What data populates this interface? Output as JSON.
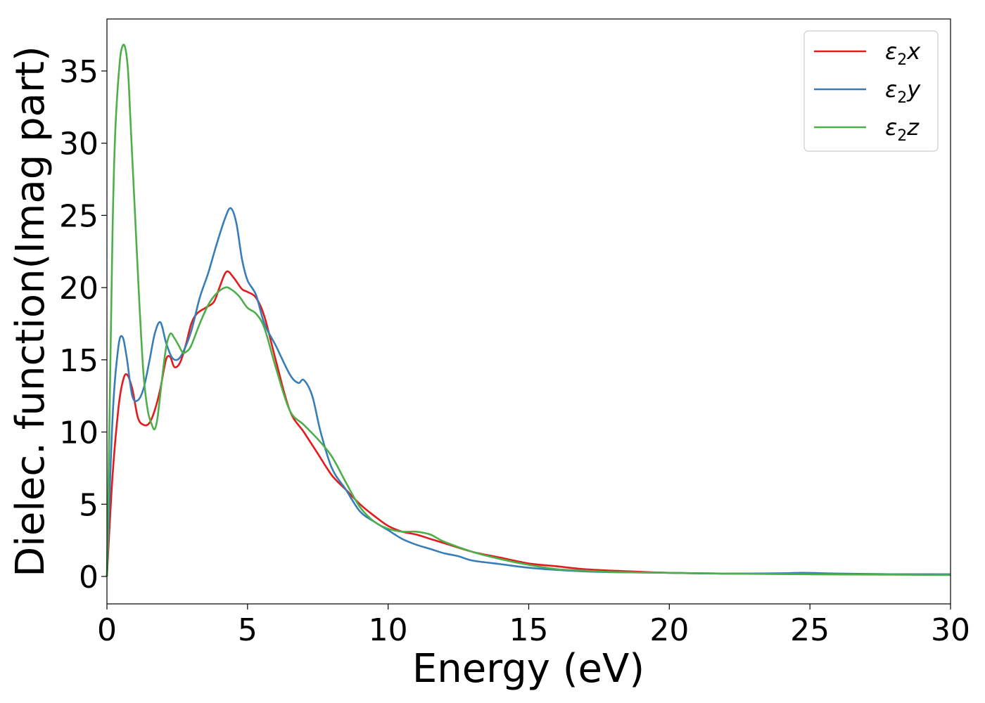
{
  "chart_data": {
    "type": "line",
    "xlabel": "Energy (eV)",
    "ylabel": "Dielec. function(Imag part)",
    "xlim": [
      0,
      30
    ],
    "ylim": [
      -1.9,
      38.6
    ],
    "xticks": [
      0,
      5,
      10,
      15,
      20,
      25,
      30
    ],
    "yticks": [
      0,
      5,
      10,
      15,
      20,
      25,
      30,
      35
    ],
    "legend_position": "top-right",
    "grid": false,
    "series": [
      {
        "name": "ε2x",
        "legend_base": "ε",
        "legend_sub": "2",
        "legend_var": "x",
        "color": "#e41a1c",
        "x": [
          0,
          0.2,
          0.4,
          0.55,
          0.7,
          0.9,
          1.1,
          1.3,
          1.5,
          1.7,
          1.9,
          2.1,
          2.25,
          2.4,
          2.6,
          2.8,
          3.0,
          3.2,
          3.5,
          3.8,
          4.0,
          4.25,
          4.5,
          4.8,
          5.0,
          5.3,
          5.6,
          6.0,
          6.5,
          7.0,
          7.5,
          8.0,
          8.5,
          9.0,
          9.5,
          10.0,
          10.5,
          11.0,
          11.5,
          12.0,
          13.0,
          14.0,
          15.0,
          16.0,
          17.0,
          18.0,
          20.0,
          22.0,
          24.0,
          26.0,
          28.0,
          30.0
        ],
        "y": [
          0,
          7,
          11.5,
          13.4,
          14.0,
          13.0,
          11.0,
          10.5,
          10.6,
          11.5,
          13.0,
          15.0,
          15.2,
          14.5,
          14.8,
          16.0,
          17.5,
          18.2,
          18.6,
          19.0,
          20.0,
          21.1,
          20.7,
          19.9,
          19.7,
          19.3,
          18.0,
          15.0,
          11.5,
          10.0,
          8.5,
          7.0,
          6.0,
          5.0,
          4.2,
          3.5,
          3.1,
          2.9,
          2.6,
          2.3,
          1.7,
          1.3,
          0.9,
          0.7,
          0.5,
          0.4,
          0.25,
          0.2,
          0.18,
          0.16,
          0.15,
          0.15
        ]
      },
      {
        "name": "ε2y",
        "legend_base": "ε",
        "legend_sub": "2",
        "legend_var": "y",
        "color": "#377eb8",
        "x": [
          0,
          0.2,
          0.4,
          0.55,
          0.7,
          0.9,
          1.1,
          1.3,
          1.5,
          1.7,
          1.9,
          2.1,
          2.3,
          2.5,
          2.7,
          3.0,
          3.3,
          3.6,
          3.9,
          4.2,
          4.4,
          4.6,
          4.8,
          5.0,
          5.3,
          5.6,
          6.0,
          6.5,
          6.8,
          7.0,
          7.3,
          7.6,
          8.0,
          8.5,
          9.0,
          9.5,
          10.0,
          10.5,
          11.0,
          11.5,
          12.0,
          12.5,
          13.0,
          14.0,
          15.0,
          16.0,
          17.0,
          18.0,
          20.0,
          22.0,
          24.0,
          24.7,
          26.0,
          28.0,
          30.0
        ],
        "y": [
          0,
          11,
          15.8,
          16.6,
          15.2,
          12.5,
          12.2,
          13.0,
          14.8,
          16.8,
          17.6,
          16.2,
          15.2,
          15.0,
          15.5,
          17.0,
          19.3,
          21.0,
          23.0,
          24.8,
          25.5,
          24.5,
          22.0,
          20.5,
          19.5,
          17.5,
          16.0,
          14.0,
          13.4,
          13.6,
          12.5,
          10.0,
          7.5,
          6.0,
          4.5,
          3.8,
          3.2,
          2.6,
          2.2,
          1.9,
          1.6,
          1.4,
          1.1,
          0.85,
          0.6,
          0.45,
          0.35,
          0.3,
          0.25,
          0.2,
          0.22,
          0.25,
          0.2,
          0.15,
          0.13
        ]
      },
      {
        "name": "ε2z",
        "legend_base": "ε",
        "legend_sub": "2",
        "legend_var": "z",
        "color": "#4daf4a",
        "x": [
          0,
          0.1,
          0.2,
          0.3,
          0.45,
          0.55,
          0.65,
          0.75,
          0.85,
          1.0,
          1.15,
          1.3,
          1.45,
          1.6,
          1.7,
          1.8,
          1.95,
          2.1,
          2.25,
          2.4,
          2.55,
          2.7,
          2.85,
          3.0,
          3.3,
          3.6,
          3.9,
          4.2,
          4.4,
          4.7,
          5.0,
          5.3,
          5.6,
          6.0,
          6.5,
          7.0,
          7.5,
          8.0,
          8.5,
          9.0,
          9.5,
          10.0,
          10.5,
          11.0,
          11.5,
          12.0,
          13.0,
          14.0,
          15.0,
          16.0,
          17.0,
          18.0,
          20.0,
          22.0,
          25.0,
          28.0,
          30.0
        ],
        "y": [
          0,
          12,
          24,
          31,
          35.5,
          36.7,
          36.6,
          35,
          31,
          25,
          19,
          14,
          11.5,
          10.5,
          10.2,
          11.0,
          13.5,
          15.8,
          16.8,
          16.5,
          16.0,
          15.5,
          15.6,
          16.0,
          17.5,
          18.8,
          19.6,
          20.0,
          19.9,
          19.4,
          18.6,
          18.2,
          17.2,
          14.5,
          11.5,
          10.5,
          9.5,
          8.3,
          6.5,
          4.8,
          3.8,
          3.3,
          3.1,
          3.1,
          2.9,
          2.4,
          1.7,
          1.2,
          0.8,
          0.5,
          0.4,
          0.3,
          0.25,
          0.2,
          0.15,
          0.12,
          0.1
        ]
      }
    ]
  }
}
